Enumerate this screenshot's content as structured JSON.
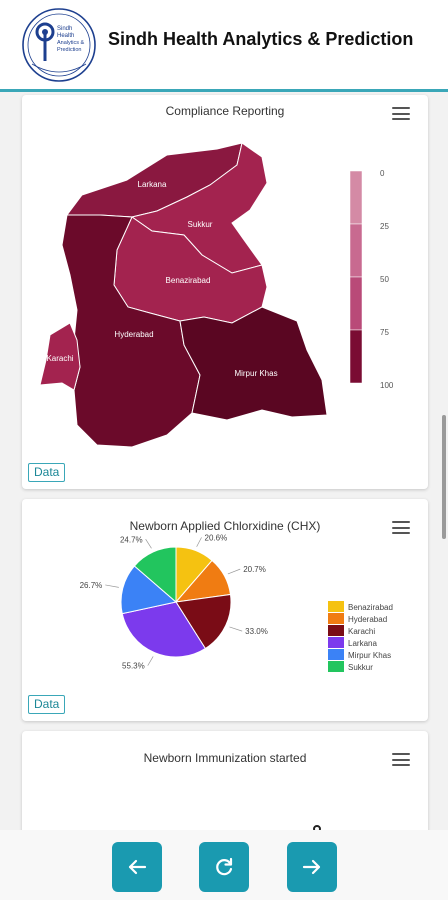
{
  "app": {
    "title": "Sindh Health Analytics & Prediction",
    "logo_text": "Sindh Health Analytics & Prediction"
  },
  "cards": {
    "compliance": {
      "title": "Compliance Reporting",
      "data_label": "Data",
      "regions": [
        "Larkana",
        "Sukkur",
        "Benazirabad",
        "Hyderabad",
        "Karachi",
        "Mirpur Khas"
      ],
      "scale_ticks": [
        "0",
        "25",
        "50",
        "75",
        "100"
      ]
    },
    "chx": {
      "title": "Newborn Applied Chlorxidine (CHX)",
      "data_label": "Data"
    },
    "immunization": {
      "title": "Newborn Immunization started"
    }
  },
  "colors": {
    "accent": "#1a9ab0",
    "map_dark": "#6b0a2a",
    "map_mid": "#8a1840",
    "map_light": "#a3234f"
  },
  "icons": {
    "menu": "hamburger-icon",
    "back": "arrow-left-icon",
    "refresh": "refresh-icon",
    "forward": "arrow-right-icon"
  },
  "chart_data": [
    {
      "type": "pie",
      "title": "Newborn Applied Chlorxidine (CHX)",
      "categories": [
        "Benazirabad",
        "Hyderabad",
        "Karachi",
        "Larkana",
        "Mirpur Khas",
        "Sukkur"
      ],
      "values": [
        20.6,
        20.7,
        33.0,
        55.3,
        26.7,
        24.7
      ],
      "value_labels": [
        "20.6%",
        "20.7%",
        "33.0%",
        "55.3%",
        "26.7%",
        "24.7%"
      ],
      "colors": [
        "#f5c211",
        "#f07c12",
        "#7a0c16",
        "#7c3aed",
        "#3b82f6",
        "#22c55e"
      ],
      "legend": "right"
    }
  ]
}
